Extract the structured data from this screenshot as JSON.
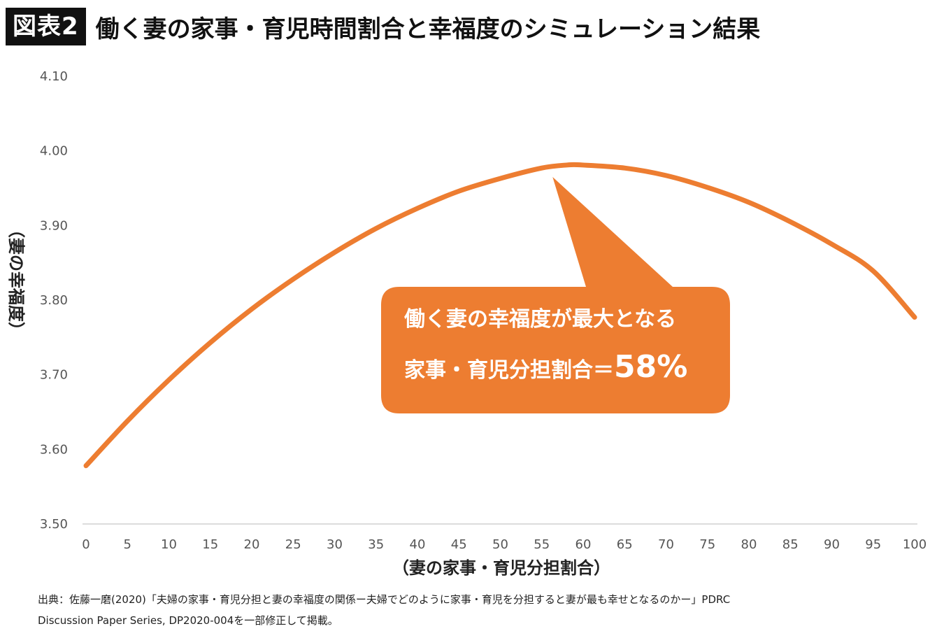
{
  "header": {
    "badge": "図表2",
    "title": "働く妻の家事・育児時間割合と幸福度のシミュレーション結果"
  },
  "chart_data": {
    "type": "line",
    "xlabel": "（妻の家事・育児分担割合）",
    "ylabel": "（妻の幸福度）",
    "xlim": [
      0,
      100
    ],
    "ylim": [
      3.5,
      4.1
    ],
    "x_ticks": [
      "0",
      "5",
      "10",
      "15",
      "20",
      "25",
      "30",
      "35",
      "40",
      "45",
      "50",
      "55",
      "60",
      "65",
      "70",
      "75",
      "80",
      "85",
      "90",
      "95",
      "100"
    ],
    "y_ticks": [
      "3.50",
      "3.60",
      "3.70",
      "3.80",
      "3.90",
      "4.00",
      "4.10"
    ],
    "grid": false,
    "series": [
      {
        "color": "#ED7D31",
        "x": [
          0,
          5,
          10,
          15,
          20,
          25,
          30,
          35,
          40,
          45,
          50,
          55,
          58,
          60,
          65,
          70,
          75,
          80,
          85,
          90,
          95,
          100
        ],
        "y": [
          3.578,
          3.638,
          3.693,
          3.743,
          3.788,
          3.828,
          3.864,
          3.896,
          3.923,
          3.946,
          3.963,
          3.977,
          3.981,
          3.981,
          3.977,
          3.967,
          3.951,
          3.931,
          3.905,
          3.875,
          3.839,
          3.777
        ]
      }
    ],
    "annotation": {
      "line1": "働く妻の幸福度が最大となる",
      "line2": "家事・育児分担割合＝",
      "value": "58%",
      "peak_x": 58,
      "color": "#ED7D31"
    }
  },
  "source": {
    "line1": "出典：佐藤一磨(2020)「夫婦の家事・育児分担と妻の幸福度の関係ー夫婦でどのように家事・育児を分担すると妻が最も幸せとなるのかー」PDRC",
    "line2": "Discussion Paper Series, DP2020-004を一部修正して掲載。"
  }
}
